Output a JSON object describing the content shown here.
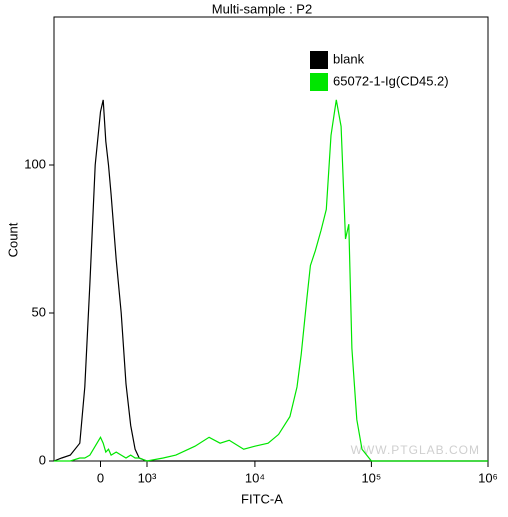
{
  "chart_data": {
    "type": "line",
    "title": "Multi-sample : P2",
    "x_label": "FITC-A",
    "y_label": "Count",
    "watermark": "WWW.PTGLAB.COM",
    "x_scale": {
      "type": "asinh",
      "cofactor": 950
    },
    "x": [
      -1000,
      -800,
      -600,
      -400,
      -300,
      -200,
      -100,
      0,
      50,
      100,
      150,
      200,
      300,
      400,
      500,
      600,
      700,
      800,
      1000,
      1500,
      2000,
      3000,
      4000,
      5000,
      6000,
      8000,
      10000,
      13000,
      16000,
      20000,
      23000,
      25000,
      28000,
      30000,
      33000,
      37000,
      41000,
      45000,
      50000,
      55000,
      60000,
      64000,
      68000,
      75000,
      83000,
      100000,
      200000,
      1000000
    ],
    "series": [
      {
        "name": "blank",
        "color": "#000000",
        "values": [
          0,
          1,
          2,
          6,
          25,
          60,
          100,
          118,
          122,
          108,
          100,
          90,
          68,
          50,
          26,
          12,
          4,
          1,
          0,
          0,
          0,
          0,
          0,
          0,
          0,
          0,
          0,
          0,
          0,
          0,
          0,
          0,
          0,
          0,
          0,
          0,
          0,
          0,
          0,
          0,
          0,
          0,
          0,
          0,
          0,
          0,
          0,
          0
        ]
      },
      {
        "name": "65072-1-Ig(CD45.2)",
        "color": "#00e600",
        "values": [
          0,
          0,
          0,
          1,
          1,
          2,
          5,
          8,
          6,
          3,
          4,
          2,
          3,
          2,
          1,
          2,
          1,
          1,
          0,
          1,
          2,
          5,
          8,
          6,
          7,
          4,
          5,
          6,
          9,
          15,
          25,
          36,
          55,
          66,
          71,
          78,
          85,
          110,
          122,
          113,
          75,
          80,
          38,
          14,
          4,
          0,
          0,
          0
        ]
      }
    ],
    "xlim": [
      -1000,
      1000000
    ],
    "xticks": [
      0,
      {
        "value": 1000,
        "label": "10³"
      },
      {
        "value": 10000,
        "label": "10⁴"
      },
      {
        "value": 100000,
        "label": "10⁵"
      },
      {
        "value": 1000000,
        "label": "10⁶"
      }
    ],
    "ylim": [
      0,
      150
    ],
    "yticks": [
      0,
      50,
      100
    ],
    "grid": false,
    "legend": "top-right"
  }
}
